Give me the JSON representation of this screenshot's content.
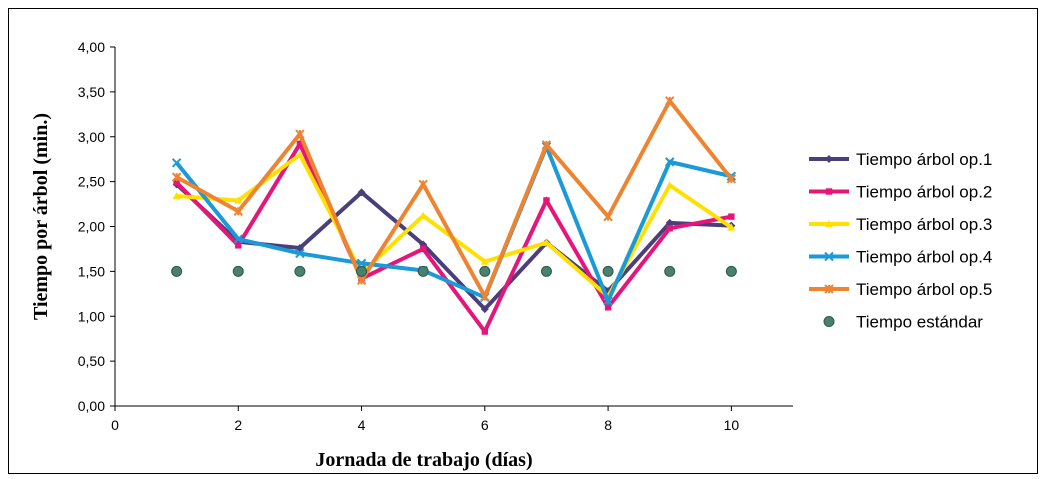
{
  "chart_data": {
    "type": "line",
    "title": "",
    "xlabel": "Jornada de trabajo (días)",
    "ylabel": "Tiempo por árbol (min.)",
    "xlim": [
      0,
      11
    ],
    "ylim": [
      0,
      4
    ],
    "x_ticks": [
      0,
      2,
      4,
      6,
      8,
      10
    ],
    "y_ticks": [
      0,
      0.5,
      1,
      1.5,
      2,
      2.5,
      3,
      3.5,
      4
    ],
    "y_tick_labels": [
      "0,00",
      "0,50",
      "1,00",
      "1,50",
      "2,00",
      "2,50",
      "3,00",
      "3,50",
      "4,00"
    ],
    "x_tick_labels": [
      "0",
      "2",
      "4",
      "6",
      "8",
      "10"
    ],
    "grid": false,
    "legend_position": "right",
    "x": [
      1,
      2,
      3,
      4,
      5,
      6,
      7,
      8,
      9,
      10
    ],
    "series": [
      {
        "name": "Tiempo árbol op.1",
        "color": "#4a3f7a",
        "marker": "diamond",
        "values": [
          2.47,
          1.83,
          1.76,
          2.38,
          1.8,
          1.08,
          1.82,
          1.28,
          2.04,
          2.01
        ]
      },
      {
        "name": "Tiempo árbol op.2",
        "color": "#e6157a",
        "marker": "square",
        "values": [
          2.49,
          1.79,
          2.92,
          1.42,
          1.75,
          0.83,
          2.29,
          1.1,
          1.98,
          2.11
        ]
      },
      {
        "name": "Tiempo árbol op.3",
        "color": "#ffe000",
        "marker": "triangle",
        "values": [
          2.34,
          2.29,
          2.8,
          1.48,
          2.12,
          1.61,
          1.82,
          1.22,
          2.46,
          1.99
        ]
      },
      {
        "name": "Tiempo árbol op.4",
        "color": "#1a9ad6",
        "marker": "x",
        "values": [
          2.71,
          1.86,
          1.7,
          1.59,
          1.51,
          1.21,
          2.89,
          1.17,
          2.72,
          2.56
        ]
      },
      {
        "name": "Tiempo árbol op.5",
        "color": "#ee8430",
        "marker": "star",
        "values": [
          2.55,
          2.17,
          3.03,
          1.4,
          2.47,
          1.22,
          2.91,
          2.11,
          3.4,
          2.53
        ]
      },
      {
        "name": "Tiempo estándar",
        "color": "#4a8070",
        "marker": "circle",
        "line": false,
        "values": [
          1.5,
          1.5,
          1.5,
          1.5,
          1.5,
          1.5,
          1.5,
          1.5,
          1.5,
          1.5
        ]
      }
    ]
  }
}
